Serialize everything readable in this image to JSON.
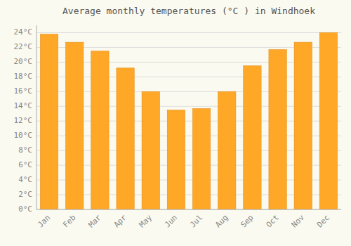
{
  "chart_data": {
    "type": "bar",
    "title": "Average monthly temperatures (°C ) in Windhoek",
    "categories": [
      "Jan",
      "Feb",
      "Mar",
      "Apr",
      "May",
      "Jun",
      "Jul",
      "Aug",
      "Sep",
      "Oct",
      "Nov",
      "Dec"
    ],
    "values": [
      23.8,
      22.7,
      21.5,
      19.2,
      16.0,
      13.5,
      13.7,
      16.0,
      19.5,
      21.7,
      22.7,
      24.0
    ],
    "color": "#FFA726",
    "ylim": [
      0,
      25
    ],
    "yticks": [
      {
        "value": 0,
        "label": "0°C"
      },
      {
        "value": 2,
        "label": "2°C"
      },
      {
        "value": 4,
        "label": "4°C"
      },
      {
        "value": 6,
        "label": "6°C"
      },
      {
        "value": 8,
        "label": "8°C"
      },
      {
        "value": 10,
        "label": "10°C"
      },
      {
        "value": 12,
        "label": "12°C"
      },
      {
        "value": 14,
        "label": "14°C"
      },
      {
        "value": 16,
        "label": "16°C"
      },
      {
        "value": 18,
        "label": "18°C"
      },
      {
        "value": 20,
        "label": "20°C"
      },
      {
        "value": 22,
        "label": "22°C"
      },
      {
        "value": 24,
        "label": "24°C"
      }
    ],
    "grid": true
  }
}
